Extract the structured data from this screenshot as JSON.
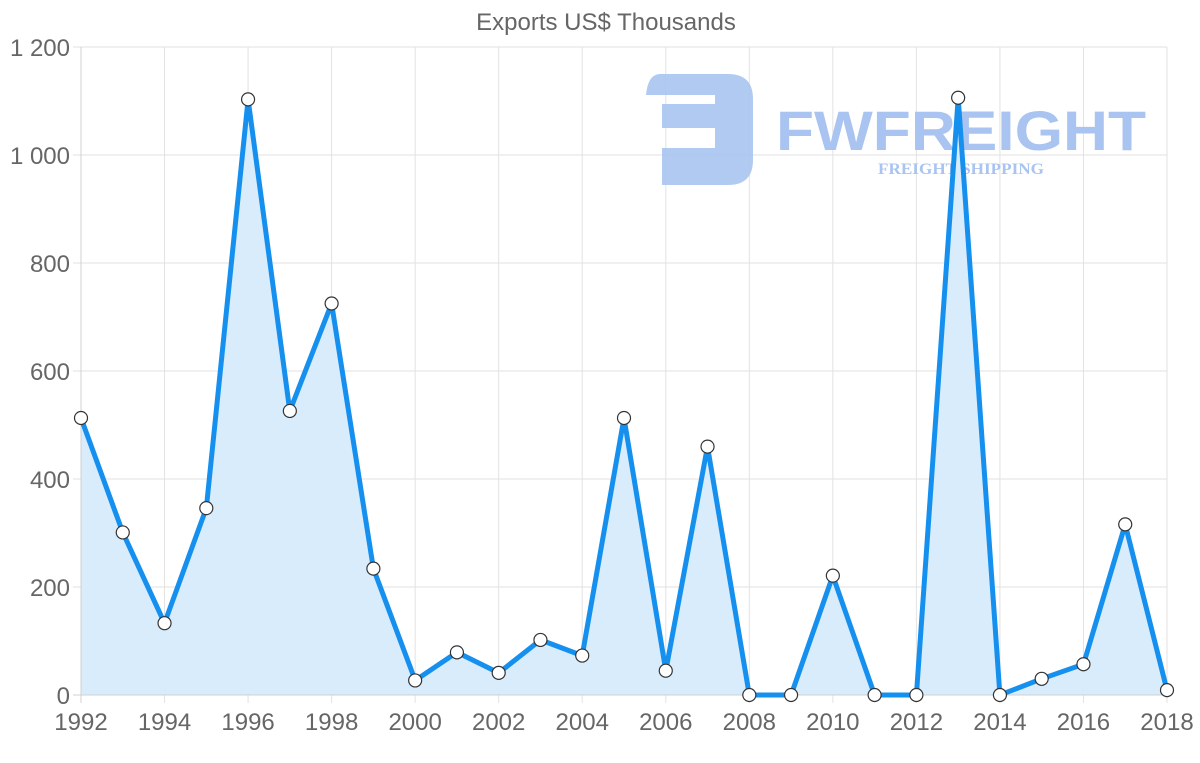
{
  "chart_data": {
    "type": "line",
    "title": "Exports US$ Thousands",
    "xlabel": "",
    "ylabel": "",
    "x": [
      1992,
      1993,
      1994,
      1995,
      1996,
      1997,
      1998,
      1999,
      2000,
      2001,
      2002,
      2003,
      2004,
      2005,
      2006,
      2007,
      2008,
      2009,
      2010,
      2011,
      2012,
      2013,
      2014,
      2015,
      2016,
      2017,
      2018
    ],
    "series": [
      {
        "name": "Exports US$ Thousands",
        "values": [
          513,
          301,
          133,
          346,
          1103,
          526,
          725,
          234,
          27,
          79,
          41,
          102,
          73,
          513,
          45,
          460,
          0,
          0,
          221,
          0,
          0,
          1106,
          0,
          30,
          57,
          316,
          9
        ],
        "line_color": "#1690ef",
        "fill_color": "#d6ebfc",
        "filled": true
      }
    ],
    "xlim": [
      1992,
      2018
    ],
    "ylim": [
      0,
      1200
    ],
    "x_tick_labels": [
      "1992",
      "1994",
      "1996",
      "1998",
      "2000",
      "2002",
      "2004",
      "2006",
      "2008",
      "2010",
      "2012",
      "2014",
      "2016",
      "2018"
    ],
    "y_tick_values": [
      0,
      200,
      400,
      600,
      800,
      1000,
      1200
    ],
    "y_tick_labels": [
      "0",
      "200",
      "400",
      "600",
      "800",
      "1 000",
      "1 200"
    ],
    "grid": true,
    "legend": null
  },
  "watermark": {
    "brand": "FWFREIGHT",
    "tagline": "FREIGHT SHIPPING",
    "color": "#a9c4f0"
  }
}
